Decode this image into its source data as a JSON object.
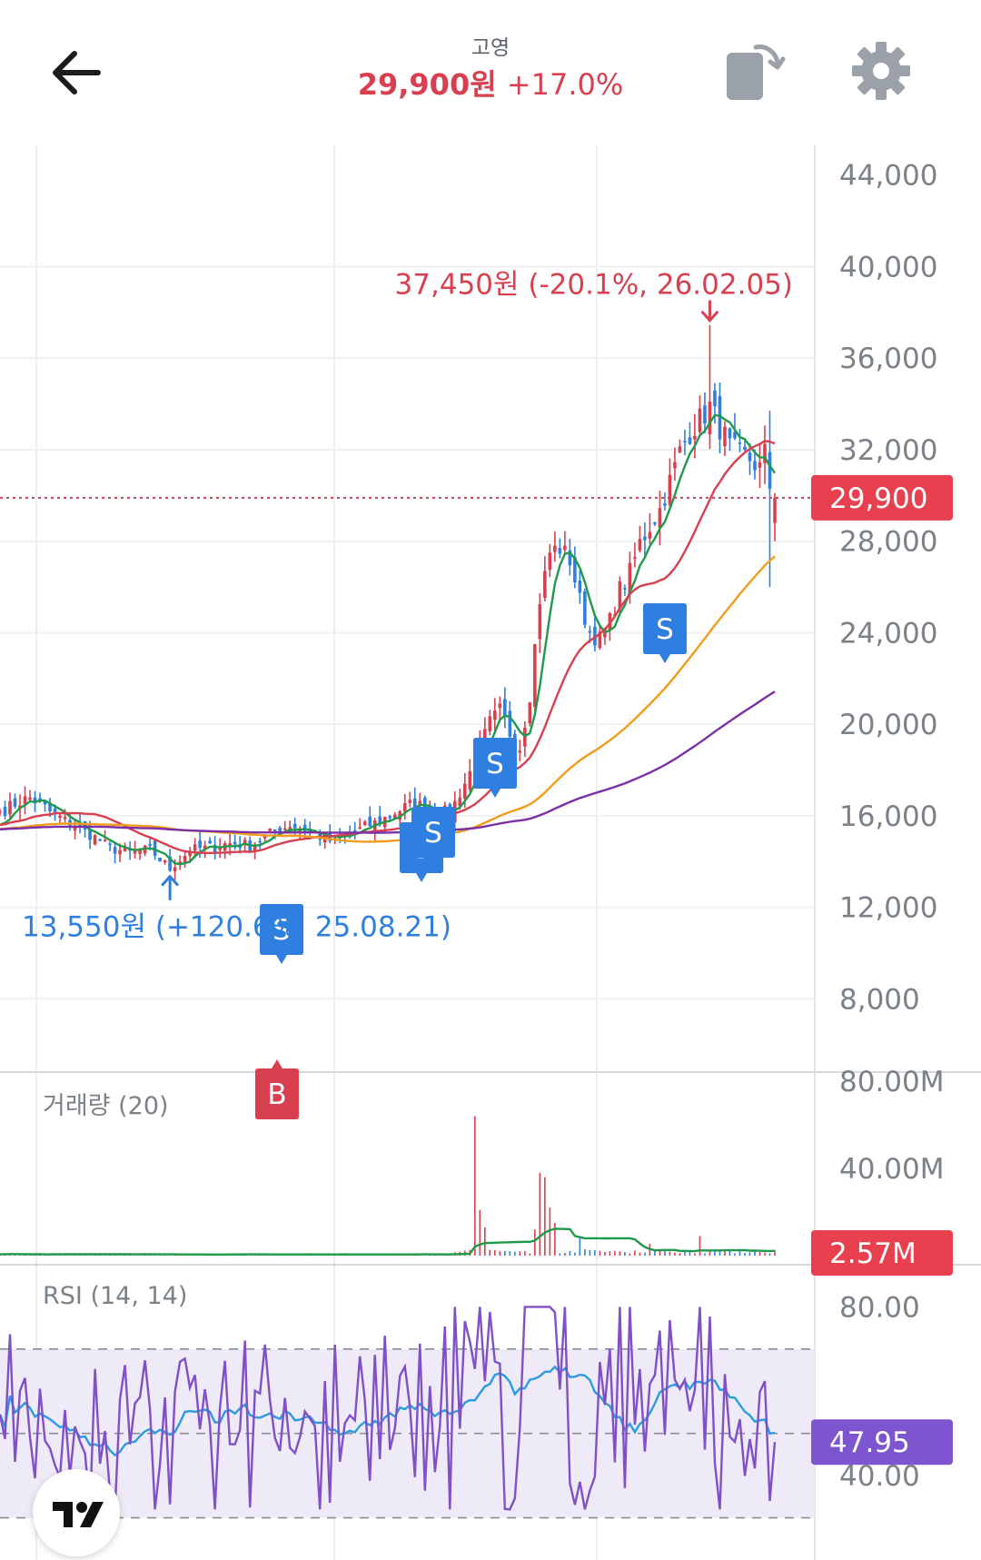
{
  "header": {
    "stock_name": "고영",
    "price": "29,900원",
    "change": "+17.0%"
  },
  "icons": {
    "back": "arrow-left-icon",
    "copy": "rotate-screen-icon",
    "settings": "gear-icon",
    "logo": "tradingview-logo"
  },
  "colors": {
    "up": "#d9404f",
    "down": "#2f7fe0",
    "ma5": "#1e9a4a",
    "ma20": "#d9404f",
    "ma60": "#f29c1b",
    "ma120": "#7d2fa6",
    "rsi": "#8050c8",
    "rsi_signal": "#2c9be0",
    "rsi_band": "#efeaf8"
  },
  "chart_data": [
    {
      "type": "candlestick",
      "title": "",
      "currency": "원",
      "y_ticks": [
        "44,000",
        "40,000",
        "36,000",
        "32,000",
        "28,000",
        "24,000",
        "20,000",
        "16,000",
        "12,000",
        "8,000"
      ],
      "ylim": [
        4800,
        45300
      ],
      "last_price": 29900,
      "last_price_label": "29,900",
      "high_marker": {
        "label": "37,450원 (-20.1%, 26.02.05)",
        "value": 37450
      },
      "low_marker": {
        "label": "13,550원 (+120.6%, 25.08.21)",
        "value": 13550
      },
      "trade_signals": [
        {
          "label": "S",
          "type": "sell"
        },
        {
          "label": "B",
          "type": "buy"
        },
        {
          "label": "S",
          "type": "sell"
        },
        {
          "label": "S",
          "type": "sell"
        },
        {
          "label": "S",
          "type": "sell"
        },
        {
          "label": "S",
          "type": "sell"
        }
      ],
      "price_path": [
        [
          0,
          16200
        ],
        [
          6,
          16800
        ],
        [
          12,
          15900
        ],
        [
          18,
          15200
        ],
        [
          22,
          14600
        ],
        [
          26,
          14400
        ],
        [
          30,
          14500
        ],
        [
          34,
          13700
        ],
        [
          38,
          14500
        ],
        [
          42,
          14600
        ],
        [
          46,
          14800
        ],
        [
          50,
          14700
        ],
        [
          54,
          15200
        ],
        [
          58,
          15600
        ],
        [
          62,
          15300
        ],
        [
          66,
          14900
        ],
        [
          70,
          15200
        ],
        [
          74,
          15600
        ],
        [
          78,
          16000
        ],
        [
          82,
          16500
        ],
        [
          86,
          16400
        ],
        [
          90,
          16100
        ],
        [
          94,
          17900
        ],
        [
          96,
          19000
        ],
        [
          98,
          20100
        ],
        [
          100,
          20600
        ],
        [
          102,
          19600
        ],
        [
          104,
          19000
        ],
        [
          106,
          21300
        ],
        [
          108,
          25500
        ],
        [
          110,
          27500
        ],
        [
          112,
          27700
        ],
        [
          114,
          27200
        ],
        [
          116,
          25400
        ],
        [
          118,
          24000
        ],
        [
          120,
          23700
        ],
        [
          122,
          24500
        ],
        [
          124,
          25900
        ],
        [
          126,
          26600
        ],
        [
          128,
          27900
        ],
        [
          130,
          28700
        ],
        [
          132,
          29400
        ],
        [
          134,
          30600
        ],
        [
          136,
          31900
        ],
        [
          138,
          32800
        ],
        [
          140,
          33300
        ],
        [
          142,
          33900
        ],
        [
          144,
          33000
        ],
        [
          146,
          32100
        ],
        [
          148,
          31800
        ],
        [
          150,
          31600
        ],
        [
          152,
          31200
        ],
        [
          153,
          31800
        ],
        [
          154,
          30300
        ],
        [
          155,
          29900
        ]
      ],
      "ma_series": [
        {
          "key": "ma5",
          "window": 5
        },
        {
          "key": "ma20",
          "window": 20
        },
        {
          "key": "ma60",
          "window": 60
        },
        {
          "key": "ma120",
          "window": 120
        }
      ]
    },
    {
      "type": "bar",
      "title": "거래량 (20)",
      "y_ticks": [
        "80.00M",
        "40.00M"
      ],
      "ylim": [
        0,
        80000000
      ],
      "last_value_label": "2.57M"
    },
    {
      "type": "line",
      "title": "RSI (14, 14)",
      "y_ticks": [
        "80.00",
        "40.00"
      ],
      "ylim": [
        20,
        90
      ],
      "band": [
        30,
        70
      ],
      "mid": 50,
      "last_value_label": "47.95"
    }
  ]
}
